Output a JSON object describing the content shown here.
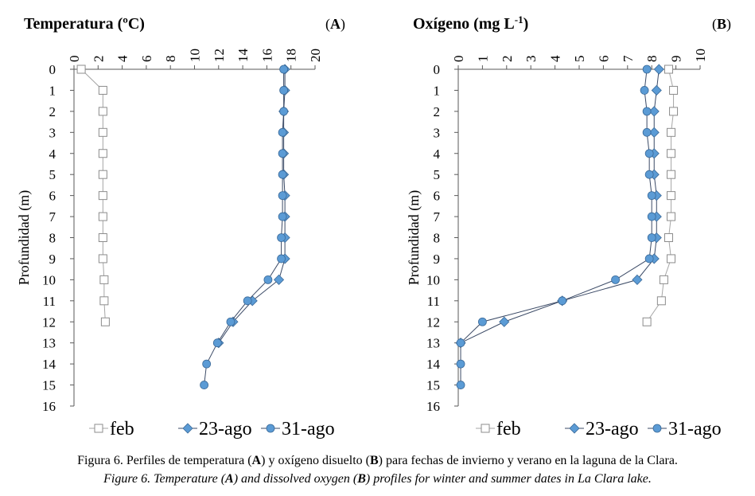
{
  "chart_data": [
    {
      "type": "line",
      "title": "Temperatura (ºC)",
      "panel_label": "A",
      "ylabel": "Profundidad (m)",
      "x_axis_position": "top",
      "xlim": [
        0,
        20
      ],
      "x_ticks": [
        "0",
        "2",
        "4",
        "6",
        "8",
        "10",
        "12",
        "14",
        "16",
        "18",
        "20"
      ],
      "ylim": [
        0,
        16
      ],
      "y_inverted": true,
      "y_ticks": [
        "0",
        "1",
        "2",
        "3",
        "4",
        "5",
        "6",
        "7",
        "8",
        "9",
        "10",
        "11",
        "12",
        "13",
        "14",
        "15",
        "16"
      ],
      "grid": false,
      "legend_position": "bottom",
      "series": [
        {
          "name": "feb",
          "marker": "square",
          "color": "#ffffff",
          "line_color": "#a6a6a6",
          "points": [
            [
              0.6,
              0
            ],
            [
              2.4,
              1
            ],
            [
              2.4,
              2
            ],
            [
              2.4,
              3
            ],
            [
              2.4,
              4
            ],
            [
              2.4,
              5
            ],
            [
              2.4,
              6
            ],
            [
              2.4,
              7
            ],
            [
              2.4,
              8
            ],
            [
              2.4,
              9
            ],
            [
              2.5,
              10
            ],
            [
              2.5,
              11
            ],
            [
              2.6,
              12
            ]
          ]
        },
        {
          "name": "23-ago",
          "marker": "diamond",
          "color": "#5b9bd5",
          "line_color": "#3b4a66",
          "points": [
            [
              17.5,
              0
            ],
            [
              17.5,
              1
            ],
            [
              17.4,
              2
            ],
            [
              17.4,
              3
            ],
            [
              17.4,
              4
            ],
            [
              17.4,
              5
            ],
            [
              17.5,
              6
            ],
            [
              17.5,
              7
            ],
            [
              17.5,
              8
            ],
            [
              17.5,
              9
            ],
            [
              17.0,
              10
            ],
            [
              14.8,
              11
            ],
            [
              13.2,
              12
            ],
            [
              12.0,
              13
            ]
          ]
        },
        {
          "name": "31-ago",
          "marker": "circle",
          "color": "#5b9bd5",
          "line_color": "#3b4a66",
          "points": [
            [
              17.4,
              0
            ],
            [
              17.4,
              1
            ],
            [
              17.4,
              2
            ],
            [
              17.3,
              3
            ],
            [
              17.3,
              4
            ],
            [
              17.3,
              5
            ],
            [
              17.3,
              6
            ],
            [
              17.3,
              7
            ],
            [
              17.2,
              8
            ],
            [
              17.2,
              9
            ],
            [
              16.1,
              10
            ],
            [
              14.4,
              11
            ],
            [
              13.0,
              12
            ],
            [
              11.9,
              13
            ],
            [
              11.0,
              14
            ],
            [
              10.8,
              15
            ]
          ]
        }
      ]
    },
    {
      "type": "line",
      "title": "Oxígeno (mg L",
      "title_superscript": "-1",
      "title_suffix": ")",
      "panel_label": "B",
      "ylabel": "Profundidad (m)",
      "x_axis_position": "top",
      "xlim": [
        0,
        10
      ],
      "x_ticks": [
        "0",
        "1",
        "2",
        "3",
        "4",
        "5",
        "6",
        "7",
        "8",
        "9",
        "10"
      ],
      "ylim": [
        0,
        16
      ],
      "y_inverted": true,
      "y_ticks": [
        "0",
        "1",
        "2",
        "3",
        "4",
        "5",
        "6",
        "7",
        "8",
        "9",
        "10",
        "11",
        "12",
        "13",
        "14",
        "15",
        "16"
      ],
      "grid": false,
      "legend_position": "bottom",
      "series": [
        {
          "name": "feb",
          "marker": "square",
          "color": "#ffffff",
          "line_color": "#a6a6a6",
          "points": [
            [
              8.7,
              0
            ],
            [
              8.9,
              1
            ],
            [
              8.9,
              2
            ],
            [
              8.8,
              3
            ],
            [
              8.8,
              4
            ],
            [
              8.8,
              5
            ],
            [
              8.8,
              6
            ],
            [
              8.8,
              7
            ],
            [
              8.7,
              8
            ],
            [
              8.8,
              9
            ],
            [
              8.5,
              10
            ],
            [
              8.4,
              11
            ],
            [
              7.8,
              12
            ]
          ]
        },
        {
          "name": "23-ago",
          "marker": "diamond",
          "color": "#5b9bd5",
          "line_color": "#3b4a66",
          "points": [
            [
              8.3,
              0
            ],
            [
              8.2,
              1
            ],
            [
              8.1,
              2
            ],
            [
              8.1,
              3
            ],
            [
              8.1,
              4
            ],
            [
              8.1,
              5
            ],
            [
              8.2,
              6
            ],
            [
              8.2,
              7
            ],
            [
              8.2,
              8
            ],
            [
              8.1,
              9
            ],
            [
              7.4,
              10
            ],
            [
              4.3,
              11
            ],
            [
              1.9,
              12
            ],
            [
              0.1,
              13
            ]
          ]
        },
        {
          "name": "31-ago",
          "marker": "circle",
          "color": "#5b9bd5",
          "line_color": "#3b4a66",
          "points": [
            [
              7.8,
              0
            ],
            [
              7.7,
              1
            ],
            [
              7.8,
              2
            ],
            [
              7.8,
              3
            ],
            [
              7.9,
              4
            ],
            [
              7.9,
              5
            ],
            [
              8.0,
              6
            ],
            [
              8.0,
              7
            ],
            [
              8.0,
              8
            ],
            [
              7.9,
              9
            ],
            [
              6.5,
              10
            ],
            [
              4.3,
              11
            ],
            [
              1.0,
              12
            ],
            [
              0.1,
              13
            ],
            [
              0.1,
              14
            ],
            [
              0.1,
              15
            ]
          ]
        }
      ]
    }
  ],
  "caption": {
    "spanish": {
      "parts": [
        {
          "text": "Figura 6. Perfiles de temperatura (",
          "bold": false
        },
        {
          "text": "A",
          "bold": true
        },
        {
          "text": ") y oxígeno disuelto (",
          "bold": false
        },
        {
          "text": "B",
          "bold": true
        },
        {
          "text": ") para fechas de invierno y verano en la laguna de la Clara.",
          "bold": false
        }
      ]
    },
    "english": {
      "parts": [
        {
          "text": "Figure 6. Temperature (",
          "bold": false
        },
        {
          "text": "A",
          "bold": true
        },
        {
          "text": ") and dissolved oxygen (",
          "bold": false
        },
        {
          "text": "B",
          "bold": true
        },
        {
          "text": ") profiles for winter and summer dates in La Clara lake.",
          "bold": false
        }
      ]
    }
  }
}
